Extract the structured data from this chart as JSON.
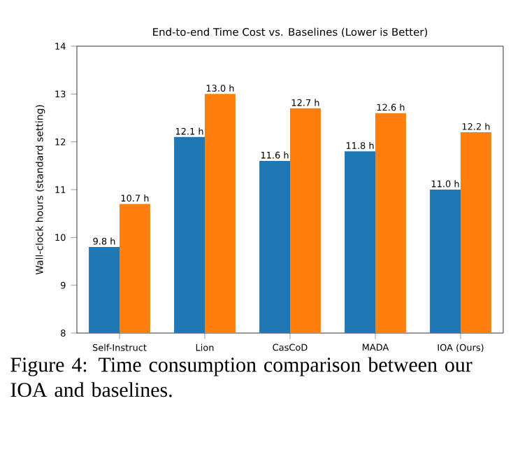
{
  "chart_data": {
    "type": "bar",
    "title": "End-to-end Time Cost vs. Baselines (Lower is Better)",
    "ylabel": "Wall-clock hours (standard setting)",
    "categories": [
      "Self-Instruct",
      "Lion",
      "CasCoD",
      "MADA",
      "IOA (Ours)"
    ],
    "series": [
      {
        "color": "#1f77b4",
        "values": [
          9.8,
          12.1,
          11.6,
          11.8,
          11.0
        ],
        "value_labels": [
          "9.8 h",
          "12.1 h",
          "11.6 h",
          "11.8 h",
          "11.0 h"
        ]
      },
      {
        "color": "#ff7f0e",
        "values": [
          10.7,
          13.0,
          12.7,
          12.6,
          12.2
        ],
        "value_labels": [
          "10.7 h",
          "13.0 h",
          "12.7 h",
          "12.6 h",
          "12.2 h"
        ]
      }
    ],
    "ylim": [
      8,
      14
    ],
    "yticks": [
      8,
      9,
      10,
      11,
      12,
      13,
      14
    ],
    "annotations": [
      "Figure 4: Time consumption comparison between our IOA and baselines."
    ]
  }
}
